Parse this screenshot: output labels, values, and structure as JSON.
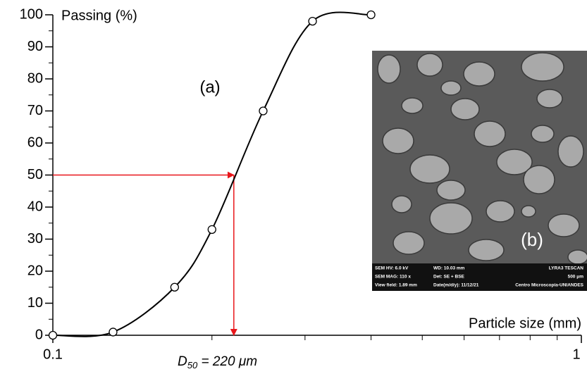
{
  "chart_data": {
    "type": "line",
    "log_x": true,
    "y_label": "Passing (%)",
    "x_label": "Particle size (mm)",
    "panel_label": "(a)",
    "series": [
      {
        "color": "#000000",
        "x": [
          0.1,
          0.13,
          0.17,
          0.2,
          0.25,
          0.31,
          0.4
        ],
        "values": [
          0,
          1,
          15,
          33,
          70,
          98,
          100
        ]
      }
    ],
    "xlim": [
      0.1,
      1
    ],
    "xticks": [
      0.1,
      1
    ],
    "xminorticks": [
      0.2,
      0.3,
      0.4,
      0.5,
      0.6,
      0.7,
      0.8,
      0.9
    ],
    "ylim": [
      0,
      100
    ],
    "yticks": [
      0,
      10,
      20,
      30,
      40,
      50,
      60,
      70,
      80,
      90,
      100
    ],
    "yminorticks": [
      5,
      15,
      25,
      35,
      45,
      55,
      65,
      75,
      85,
      95
    ],
    "d50": {
      "x": 0.22,
      "y": 50,
      "color": "#e8161b",
      "symbol": "D",
      "subscript": "50",
      "text": " = 220 μm"
    },
    "inset": {
      "label": "(b)",
      "footer": [
        "SEM HV: 6.0 kV",
        "WD: 10.03 mm",
        "LYRA3 TESCAN",
        "SEM MAG: 110 x",
        "Det: SE + BSE",
        "500 μm",
        "View field: 1.89 mm",
        "Date(m/d/y): 11/12/21",
        "Centro Microscopia-UNIANDES"
      ]
    }
  }
}
